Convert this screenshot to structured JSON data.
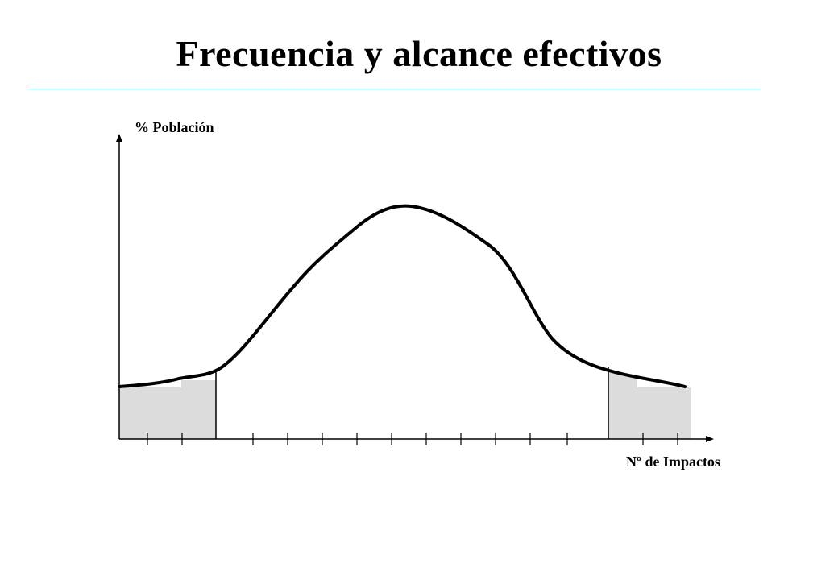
{
  "slide": {
    "title": "Frecuencia y alcance efectivos",
    "y_axis_label": "% Población",
    "x_axis_label": "Nº de Impactos",
    "colors": {
      "accent_rule": "#7fdfe6",
      "shaded_region": "#dcdcdc",
      "curve": "#000000"
    }
  }
}
